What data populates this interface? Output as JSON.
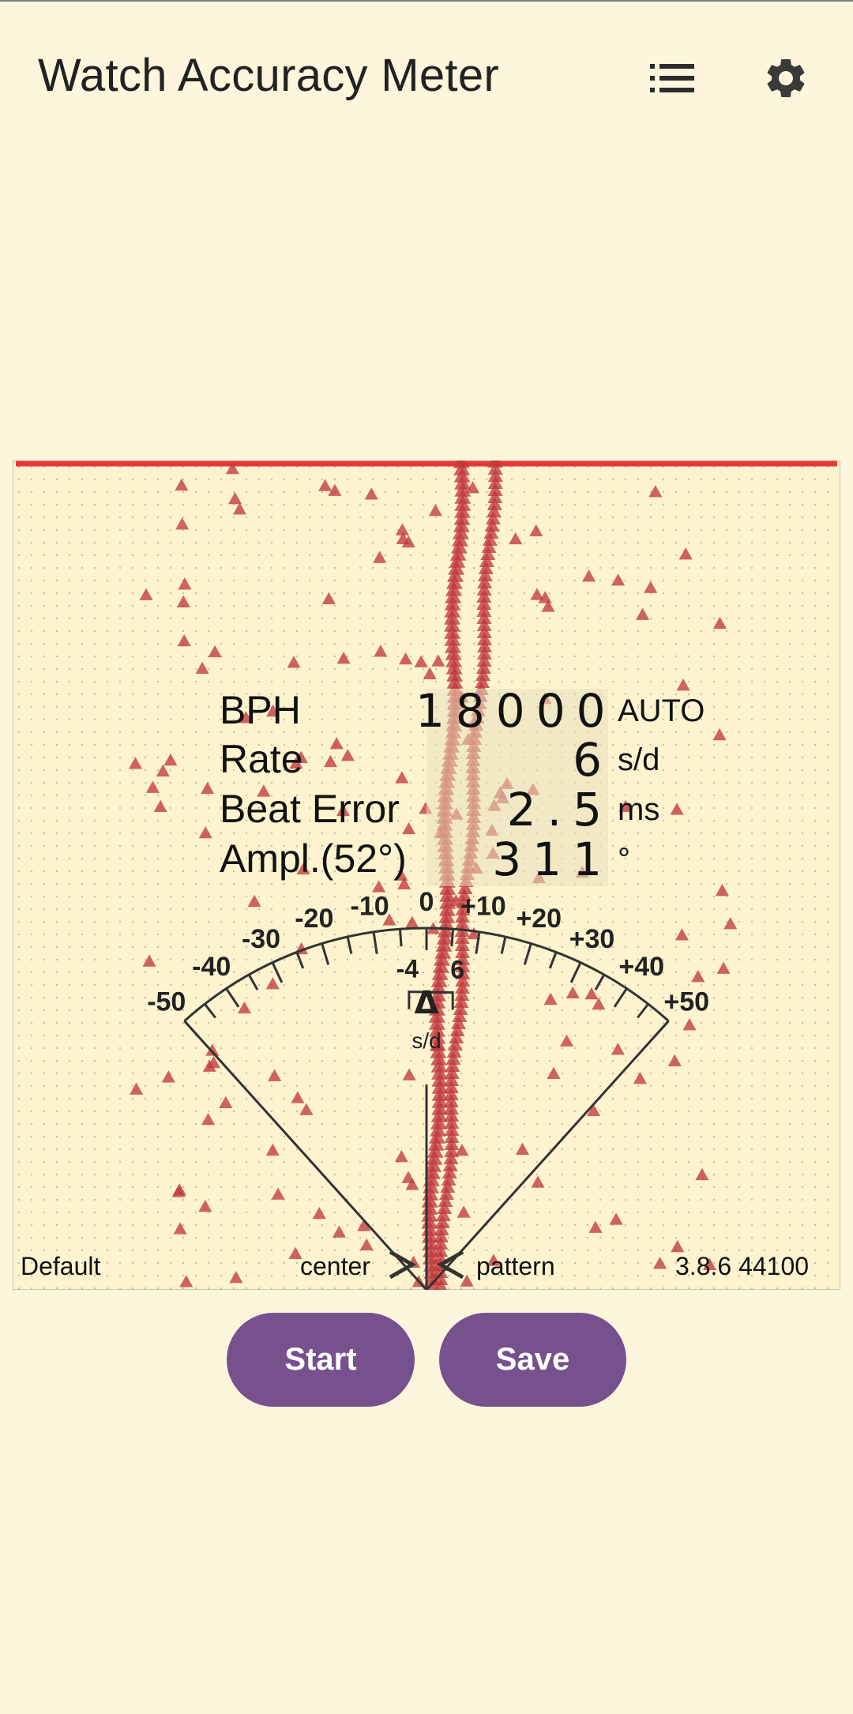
{
  "app": {
    "title": "Watch Accuracy Meter"
  },
  "toolbar": {
    "list_icon": "list-icon",
    "settings_icon": "gear-icon"
  },
  "colors": {
    "background": "#fdf6dc",
    "accent": "#77508e",
    "trace": "#c0393b",
    "limit_line": "#e53935",
    "grid": "#d9cfb5"
  },
  "dial": {
    "scale_labels": [
      "-50",
      "-40",
      "-30",
      "-20",
      "-10",
      "0",
      "+10",
      "+20",
      "+30",
      "+40",
      "+50"
    ],
    "range_low_label": "-4",
    "range_high_label": "6",
    "delta_symbol": "Δ",
    "delta_unit": "s/d"
  },
  "readings": [
    {
      "label": "BPH",
      "value": "18000",
      "unit": "AUTO"
    },
    {
      "label": "Rate",
      "value": "6",
      "unit": "s/d"
    },
    {
      "label": "Beat Error",
      "value": "2.5",
      "unit": "ms"
    },
    {
      "label": "Ampl.(52°)",
      "value": "311",
      "unit": "°"
    }
  ],
  "footer": {
    "profile": "Default",
    "center_label": "center",
    "pattern_label": "pattern",
    "version": "3.8.6 44100"
  },
  "actions": {
    "start_label": "Start",
    "save_label": "Save"
  }
}
